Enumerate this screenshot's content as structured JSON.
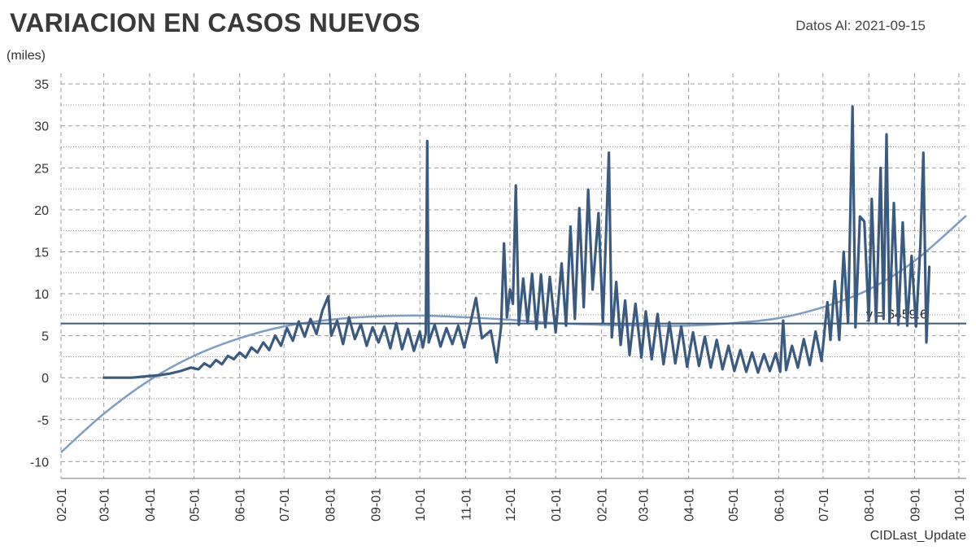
{
  "header": {
    "title": "VARIACION EN CASOS NUEVOS",
    "as_of": "Datos Al: 2021-09-15",
    "y_unit": "(miles)",
    "footer": "CIDLast_Update"
  },
  "colors": {
    "series": "#3b5a80",
    "trend": "#7f9cc2",
    "mean_line": "#3b5a80",
    "grid": "#999999"
  },
  "chart_data": {
    "type": "line",
    "title": "VARIACION EN CASOS NUEVOS",
    "ylabel": "(miles)",
    "ylim": [
      -12,
      35.5
    ],
    "yticks": [
      -10,
      -5,
      0,
      5,
      10,
      15,
      20,
      25,
      30,
      35
    ],
    "x_range": [
      "2020-02-01",
      "2021-10-06"
    ],
    "x_ticks": [
      "2020-02-01",
      "2020-03-01",
      "2020-04-01",
      "2020-05-01",
      "2020-06-01",
      "2020-07-01",
      "2020-08-01",
      "2020-09-01",
      "2020-10-01",
      "2020-11-01",
      "2020-12-01",
      "2021-01-01",
      "2021-02-01",
      "2021-03-01",
      "2021-04-01",
      "2021-05-01",
      "2021-06-01",
      "2021-07-01",
      "2021-08-01",
      "2021-09-01",
      "2021-10-01"
    ],
    "x_tick_labels": [
      "02-01",
      "03-01",
      "04-01",
      "05-01",
      "06-01",
      "07-01",
      "08-01",
      "09-01",
      "10-01",
      "11-01",
      "12-01",
      "01-01",
      "02-01",
      "03-01",
      "04-01",
      "05-01",
      "06-01",
      "07-01",
      "08-01",
      "09-01",
      "10-01"
    ],
    "grid": true,
    "mean_line": {
      "y": 6.46,
      "label": "y = 6459.6"
    },
    "trend_curve": {
      "name": "",
      "points": [
        [
          "2020-02-01",
          -8.9
        ],
        [
          "2020-03-01",
          -4.3
        ],
        [
          "2020-04-01",
          -0.3
        ],
        [
          "2020-05-01",
          2.6
        ],
        [
          "2020-06-01",
          4.7
        ],
        [
          "2020-07-01",
          6.1
        ],
        [
          "2020-08-01",
          6.9
        ],
        [
          "2020-09-01",
          7.3
        ],
        [
          "2020-10-01",
          7.4
        ],
        [
          "2020-11-01",
          7.2
        ],
        [
          "2020-12-01",
          6.9
        ],
        [
          "2021-01-01",
          6.5
        ],
        [
          "2021-02-01",
          6.3
        ],
        [
          "2021-03-01",
          6.2
        ],
        [
          "2021-04-01",
          6.2
        ],
        [
          "2021-05-01",
          6.5
        ],
        [
          "2021-06-01",
          7.1
        ],
        [
          "2021-07-01",
          8.4
        ],
        [
          "2021-08-01",
          10.5
        ],
        [
          "2021-09-01",
          13.9
        ],
        [
          "2021-10-06",
          19.3
        ]
      ]
    },
    "series": [
      {
        "name": "",
        "points": [
          [
            "2020-03-01",
            0.0
          ],
          [
            "2020-03-20",
            0.0
          ],
          [
            "2020-04-01",
            0.2
          ],
          [
            "2020-04-08",
            0.3
          ],
          [
            "2020-04-15",
            0.5
          ],
          [
            "2020-04-22",
            0.8
          ],
          [
            "2020-04-29",
            1.2
          ],
          [
            "2020-05-04",
            1.0
          ],
          [
            "2020-05-08",
            1.7
          ],
          [
            "2020-05-12",
            1.3
          ],
          [
            "2020-05-16",
            2.1
          ],
          [
            "2020-05-20",
            1.6
          ],
          [
            "2020-05-24",
            2.6
          ],
          [
            "2020-05-28",
            2.2
          ],
          [
            "2020-06-01",
            3.0
          ],
          [
            "2020-06-05",
            2.4
          ],
          [
            "2020-06-09",
            3.6
          ],
          [
            "2020-06-13",
            3.0
          ],
          [
            "2020-06-17",
            4.2
          ],
          [
            "2020-06-21",
            3.3
          ],
          [
            "2020-06-25",
            5.0
          ],
          [
            "2020-06-29",
            3.8
          ],
          [
            "2020-07-03",
            5.9
          ],
          [
            "2020-07-07",
            4.4
          ],
          [
            "2020-07-11",
            6.7
          ],
          [
            "2020-07-15",
            4.9
          ],
          [
            "2020-07-19",
            7.0
          ],
          [
            "2020-07-23",
            5.2
          ],
          [
            "2020-07-27",
            8.0
          ],
          [
            "2020-07-31",
            9.7
          ],
          [
            "2020-08-02",
            5.0
          ],
          [
            "2020-08-06",
            6.8
          ],
          [
            "2020-08-10",
            4.0
          ],
          [
            "2020-08-14",
            7.2
          ],
          [
            "2020-08-18",
            4.6
          ],
          [
            "2020-08-22",
            6.4
          ],
          [
            "2020-08-26",
            3.8
          ],
          [
            "2020-08-30",
            6.0
          ],
          [
            "2020-09-03",
            4.2
          ],
          [
            "2020-09-07",
            6.1
          ],
          [
            "2020-09-11",
            3.5
          ],
          [
            "2020-09-15",
            6.5
          ],
          [
            "2020-09-19",
            3.4
          ],
          [
            "2020-09-23",
            5.8
          ],
          [
            "2020-09-27",
            3.2
          ],
          [
            "2020-10-01",
            5.5
          ],
          [
            "2020-10-03",
            3.6
          ],
          [
            "2020-10-05",
            5.3
          ],
          [
            "2020-10-06",
            28.2
          ],
          [
            "2020-10-07",
            4.2
          ],
          [
            "2020-10-11",
            6.3
          ],
          [
            "2020-10-15",
            3.7
          ],
          [
            "2020-10-19",
            5.9
          ],
          [
            "2020-10-23",
            4.0
          ],
          [
            "2020-10-27",
            6.2
          ],
          [
            "2020-10-31",
            3.6
          ],
          [
            "2020-11-04",
            6.3
          ],
          [
            "2020-11-08",
            9.5
          ],
          [
            "2020-11-12",
            4.7
          ],
          [
            "2020-11-18",
            5.6
          ],
          [
            "2020-11-22",
            1.8
          ],
          [
            "2020-11-25",
            6.1
          ],
          [
            "2020-11-27",
            16.0
          ],
          [
            "2020-11-29",
            7.2
          ],
          [
            "2020-12-01",
            10.5
          ],
          [
            "2020-12-03",
            8.8
          ],
          [
            "2020-12-05",
            22.9
          ],
          [
            "2020-12-07",
            6.3
          ],
          [
            "2020-12-10",
            11.8
          ],
          [
            "2020-12-13",
            6.5
          ],
          [
            "2020-12-16",
            12.4
          ],
          [
            "2020-12-19",
            5.8
          ],
          [
            "2020-12-22",
            12.3
          ],
          [
            "2020-12-25",
            6.0
          ],
          [
            "2020-12-28",
            12.0
          ],
          [
            "2021-01-01",
            5.4
          ],
          [
            "2021-01-05",
            13.6
          ],
          [
            "2021-01-08",
            6.2
          ],
          [
            "2021-01-11",
            18.0
          ],
          [
            "2021-01-14",
            7.0
          ],
          [
            "2021-01-17",
            20.2
          ],
          [
            "2021-01-20",
            8.4
          ],
          [
            "2021-01-23",
            22.4
          ],
          [
            "2021-01-26",
            10.5
          ],
          [
            "2021-01-30",
            19.6
          ],
          [
            "2021-02-02",
            6.6
          ],
          [
            "2021-02-06",
            26.8
          ],
          [
            "2021-02-08",
            4.8
          ],
          [
            "2021-02-11",
            11.4
          ],
          [
            "2021-02-14",
            3.9
          ],
          [
            "2021-02-17",
            9.2
          ],
          [
            "2021-02-20",
            2.7
          ],
          [
            "2021-02-24",
            8.8
          ],
          [
            "2021-02-28",
            2.4
          ],
          [
            "2021-03-03",
            7.9
          ],
          [
            "2021-03-07",
            2.2
          ],
          [
            "2021-03-11",
            7.6
          ],
          [
            "2021-03-15",
            1.6
          ],
          [
            "2021-03-19",
            6.6
          ],
          [
            "2021-03-23",
            1.7
          ],
          [
            "2021-03-27",
            6.1
          ],
          [
            "2021-03-31",
            1.3
          ],
          [
            "2021-04-04",
            5.4
          ],
          [
            "2021-04-08",
            1.4
          ],
          [
            "2021-04-12",
            4.9
          ],
          [
            "2021-04-16",
            1.2
          ],
          [
            "2021-04-20",
            4.5
          ],
          [
            "2021-04-24",
            1.0
          ],
          [
            "2021-04-28",
            3.8
          ],
          [
            "2021-05-02",
            0.8
          ],
          [
            "2021-05-06",
            3.3
          ],
          [
            "2021-05-10",
            0.7
          ],
          [
            "2021-05-14",
            3.0
          ],
          [
            "2021-05-18",
            0.6
          ],
          [
            "2021-05-22",
            2.8
          ],
          [
            "2021-05-26",
            0.8
          ],
          [
            "2021-05-30",
            2.9
          ],
          [
            "2021-06-02",
            0.7
          ],
          [
            "2021-06-04",
            6.8
          ],
          [
            "2021-06-06",
            0.9
          ],
          [
            "2021-06-10",
            3.8
          ],
          [
            "2021-06-14",
            1.2
          ],
          [
            "2021-06-18",
            4.6
          ],
          [
            "2021-06-22",
            1.5
          ],
          [
            "2021-06-26",
            5.5
          ],
          [
            "2021-06-30",
            2.0
          ],
          [
            "2021-07-04",
            9.0
          ],
          [
            "2021-07-06",
            4.5
          ],
          [
            "2021-07-09",
            11.5
          ],
          [
            "2021-07-12",
            4.5
          ],
          [
            "2021-07-15",
            15.0
          ],
          [
            "2021-07-18",
            6.5
          ],
          [
            "2021-07-21",
            32.3
          ],
          [
            "2021-07-23",
            6.0
          ],
          [
            "2021-07-26",
            19.2
          ],
          [
            "2021-07-29",
            18.6
          ],
          [
            "2021-08-01",
            6.8
          ],
          [
            "2021-08-03",
            21.3
          ],
          [
            "2021-08-06",
            6.5
          ],
          [
            "2021-08-09",
            25.0
          ],
          [
            "2021-08-11",
            7.0
          ],
          [
            "2021-08-13",
            29.0
          ],
          [
            "2021-08-15",
            6.5
          ],
          [
            "2021-08-18",
            20.8
          ],
          [
            "2021-08-21",
            6.3
          ],
          [
            "2021-08-24",
            18.5
          ],
          [
            "2021-08-27",
            6.2
          ],
          [
            "2021-08-30",
            14.5
          ],
          [
            "2021-09-02",
            6.1
          ],
          [
            "2021-09-05",
            16.0
          ],
          [
            "2021-09-07",
            26.8
          ],
          [
            "2021-09-09",
            4.2
          ],
          [
            "2021-09-11",
            13.2
          ]
        ]
      }
    ]
  }
}
